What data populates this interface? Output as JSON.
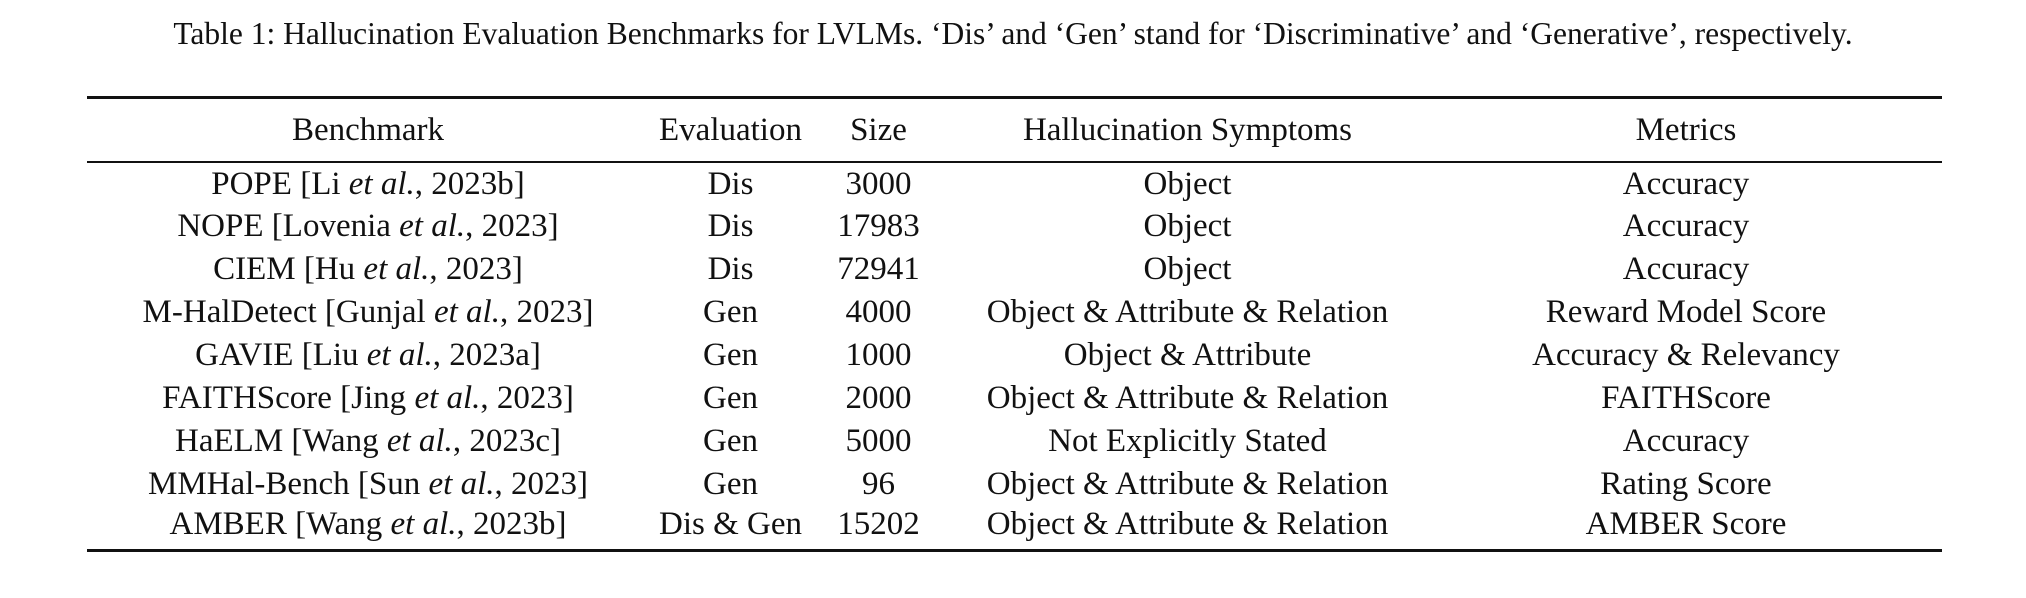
{
  "caption": "Table 1: Hallucination Evaluation Benchmarks for LVLMs. ‘Dis’ and ‘Gen’ stand for ‘Discriminative’ and ‘Generative’, respectively.",
  "table": {
    "headers": {
      "benchmark": "Benchmark",
      "evaluation": "Evaluation",
      "size": "Size",
      "symptoms": "Hallucination Symptoms",
      "metrics": "Metrics"
    },
    "rows": [
      {
        "name": "POPE",
        "author": "Li",
        "etal": "et al.",
        "year": "2023b",
        "evaluation": "Dis",
        "size": "3000",
        "symptoms": "Object",
        "metrics": "Accuracy"
      },
      {
        "name": "NOPE",
        "author": "Lovenia",
        "etal": "et al.",
        "year": "2023",
        "evaluation": "Dis",
        "size": "17983",
        "symptoms": "Object",
        "metrics": "Accuracy"
      },
      {
        "name": "CIEM",
        "author": "Hu",
        "etal": "et al.",
        "year": "2023",
        "evaluation": "Dis",
        "size": "72941",
        "symptoms": "Object",
        "metrics": "Accuracy"
      },
      {
        "name": "M-HalDetect",
        "author": "Gunjal",
        "etal": "et al.",
        "year": "2023",
        "evaluation": "Gen",
        "size": "4000",
        "symptoms": "Object & Attribute & Relation",
        "metrics": "Reward Model Score"
      },
      {
        "name": "GAVIE",
        "author": "Liu",
        "etal": "et al.",
        "year": "2023a",
        "evaluation": "Gen",
        "size": "1000",
        "symptoms": "Object & Attribute",
        "metrics": "Accuracy & Relevancy"
      },
      {
        "name": "FAITHScore",
        "author": "Jing",
        "etal": "et al.",
        "year": "2023",
        "evaluation": "Gen",
        "size": "2000",
        "symptoms": "Object & Attribute & Relation",
        "metrics": "FAITHScore"
      },
      {
        "name": "HaELM",
        "author": "Wang",
        "etal": "et al.",
        "year": "2023c",
        "evaluation": "Gen",
        "size": "5000",
        "symptoms": "Not Explicitly Stated",
        "metrics": "Accuracy"
      },
      {
        "name": "MMHal-Bench",
        "author": "Sun",
        "etal": "et al.",
        "year": "2023",
        "evaluation": "Gen",
        "size": "96",
        "symptoms": "Object & Attribute & Relation",
        "metrics": "Rating Score"
      },
      {
        "name": "AMBER",
        "author": "Wang",
        "etal": "et al.",
        "year": "2023b",
        "evaluation": "Dis & Gen",
        "size": "15202",
        "symptoms": "Object & Attribute & Relation",
        "metrics": "AMBER Score"
      }
    ]
  }
}
